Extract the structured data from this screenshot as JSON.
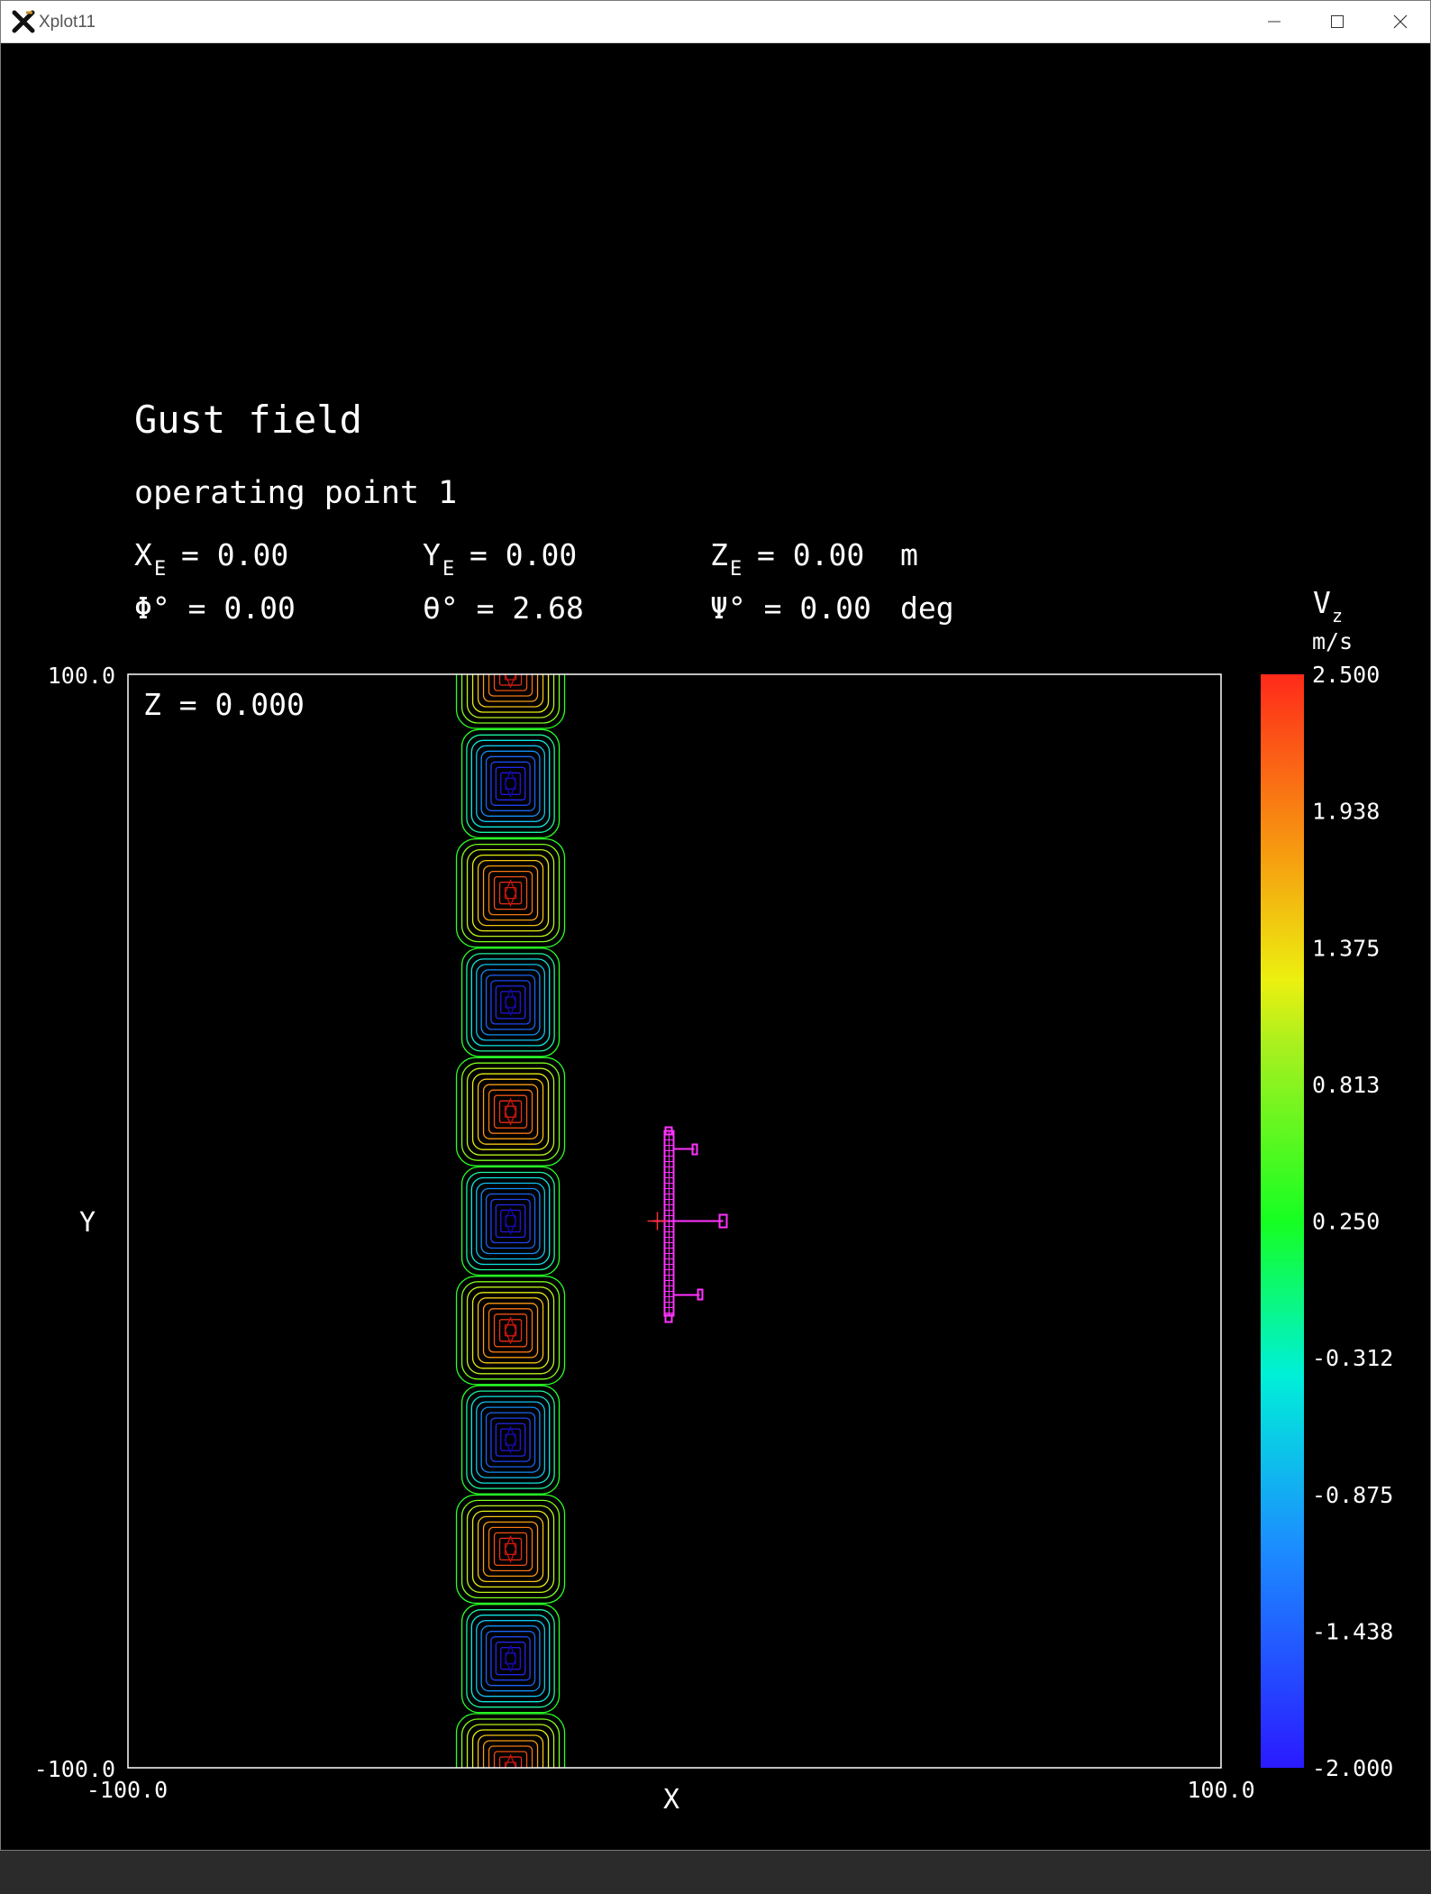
{
  "window": {
    "title": "Xplot11"
  },
  "plot": {
    "title": "Gust field",
    "subtitle": "operating point 1",
    "state": {
      "row1": {
        "xe_label": "X",
        "xe_sub": "E",
        "xe_value": "= 0.00",
        "ye_label": "Y",
        "ye_sub": "E",
        "ye_value": "= 0.00",
        "ze_label": "Z",
        "ze_sub": "E",
        "ze_value": "= 0.00",
        "unit": "m"
      },
      "row2": {
        "phi": "Φ° = 0.00",
        "theta": "θ° = 2.68",
        "psi": "Ψ° = 0.00",
        "unit": "deg"
      }
    },
    "z_label": "Z  =  0.000",
    "x_axis_label": "X",
    "y_axis_label": "Y",
    "x_min_label": "-100.0",
    "x_max_label": "100.0",
    "y_min_label": "-100.0",
    "y_max_label": "100.0"
  },
  "chart_data": {
    "type": "heatmap",
    "title": "Gust field",
    "xlabel": "X",
    "ylabel": "Y",
    "xlim": [
      -100.0,
      100.0
    ],
    "ylim": [
      -100.0,
      100.0
    ],
    "field": "Vz contour, periodic gust band near X ≈ -30 alternating positive/negative cells along Y",
    "band_center_x": -30,
    "cells": [
      {
        "y": 100,
        "value": 2.5
      },
      {
        "y": 80,
        "value": -2.0
      },
      {
        "y": 60,
        "value": 2.5
      },
      {
        "y": 40,
        "value": -2.0
      },
      {
        "y": 20,
        "value": 2.5
      },
      {
        "y": 0,
        "value": -2.0
      },
      {
        "y": -20,
        "value": 2.5
      },
      {
        "y": -40,
        "value": -2.0
      },
      {
        "y": -60,
        "value": 2.5
      },
      {
        "y": -80,
        "value": -2.0
      },
      {
        "y": -100,
        "value": 2.5
      }
    ],
    "colorbar": {
      "label": "V",
      "label_sub": "z",
      "unit": "m/s",
      "ticks": [
        "2.500",
        "1.938",
        "1.375",
        "0.813",
        "0.250",
        "-0.312",
        "-0.875",
        "-1.438",
        "-2.000"
      ],
      "min": -2.0,
      "max": 2.5
    },
    "aircraft": {
      "x": 0,
      "y": 0,
      "color": "#ff33ff"
    }
  }
}
